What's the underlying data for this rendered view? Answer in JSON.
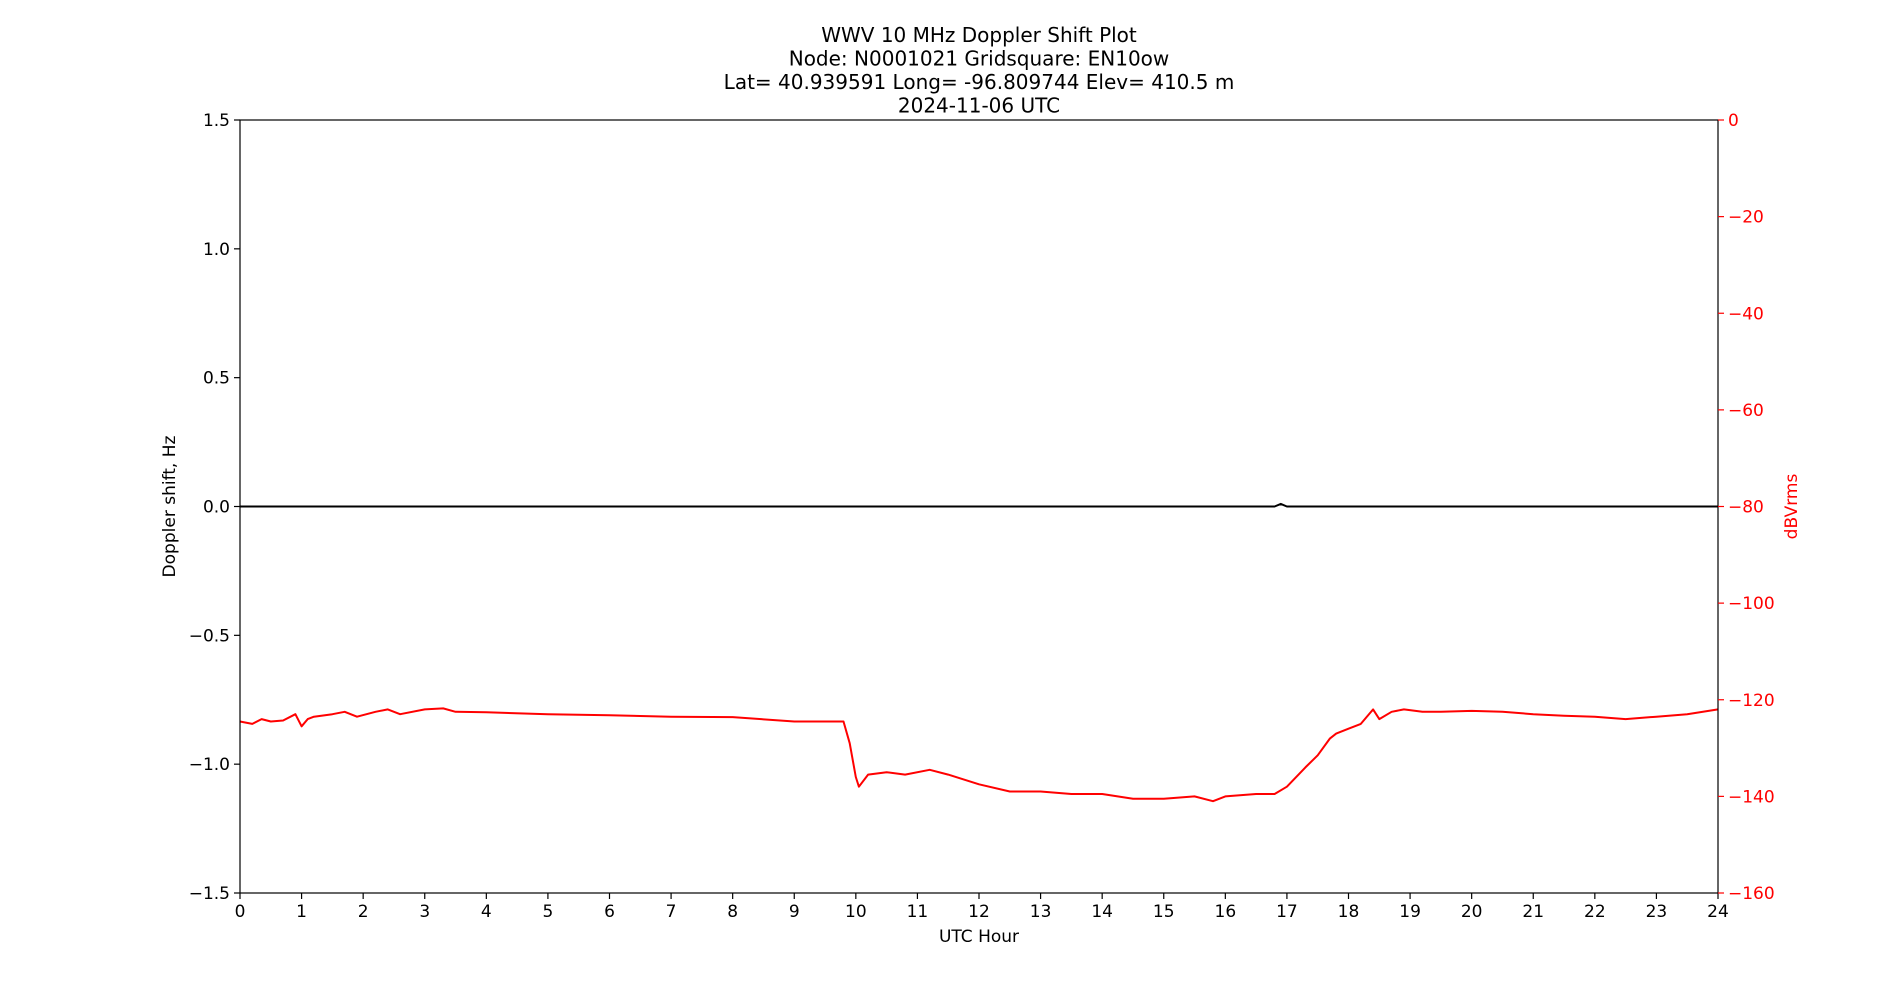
{
  "colors": {
    "doppler": "#000000",
    "power": "#ff0000",
    "axis": "#000000",
    "right_axis": "#ff0000"
  },
  "chart_data": {
    "type": "line",
    "title_lines": [
      "WWV 10 MHz Doppler Shift Plot",
      "Node:  N0001021     Gridsquare:  EN10ow",
      "Lat= 40.939591    Long= -96.809744    Elev= 410.5 m",
      "2024-11-06  UTC"
    ],
    "xlabel": "UTC Hour",
    "ylabel": "Doppler shift, Hz",
    "y2label": "dBVrms",
    "xlim": [
      0,
      24
    ],
    "ylim": [
      -1.5,
      1.5
    ],
    "y2lim": [
      -160,
      0
    ],
    "x_ticks": [
      0,
      1,
      2,
      3,
      4,
      5,
      6,
      7,
      8,
      9,
      10,
      11,
      12,
      13,
      14,
      15,
      16,
      17,
      18,
      19,
      20,
      21,
      22,
      23,
      24
    ],
    "y_ticks": [
      1.5,
      1.0,
      0.5,
      0.0,
      -0.5,
      -1.0,
      -1.5
    ],
    "y_tick_labels": [
      "1.5",
      "1.0",
      "0.5",
      "0.0",
      "−0.5",
      "−1.0",
      "−1.5"
    ],
    "y2_ticks": [
      0,
      -20,
      -40,
      -60,
      -80,
      -100,
      -120,
      -140,
      -160
    ],
    "y2_tick_labels": [
      "0",
      "−20",
      "−40",
      "−60",
      "−80",
      "−100",
      "−120",
      "−140",
      "−160"
    ],
    "grid": false,
    "series": [
      {
        "axis": "left",
        "x": [
          0,
          2,
          4,
          6,
          8,
          10,
          12,
          14,
          16,
          16.8,
          16.9,
          17.0,
          18,
          20,
          22,
          24
        ],
        "y": [
          0.0,
          0.0,
          0.0,
          0.0,
          0.0,
          0.0,
          0.0,
          0.0,
          0.0,
          0.0,
          0.01,
          0.0,
          0.0,
          0.0,
          0.0,
          0.0
        ]
      },
      {
        "axis": "right",
        "x": [
          0,
          0.2,
          0.35,
          0.5,
          0.7,
          0.9,
          1.0,
          1.1,
          1.2,
          1.5,
          1.7,
          1.9,
          2.2,
          2.4,
          2.6,
          3.0,
          3.3,
          3.5,
          4.0,
          5.0,
          6.0,
          7.0,
          8.0,
          9.0,
          9.5,
          9.8,
          9.9,
          10.0,
          10.05,
          10.2,
          10.5,
          10.8,
          11.2,
          11.5,
          12.0,
          12.5,
          13.0,
          13.5,
          14.0,
          14.5,
          15.0,
          15.5,
          15.8,
          16.0,
          16.5,
          16.8,
          17.0,
          17.3,
          17.5,
          17.7,
          17.8,
          18.0,
          18.2,
          18.4,
          18.5,
          18.7,
          18.9,
          19.2,
          19.5,
          20.0,
          20.5,
          21.0,
          21.5,
          22.0,
          22.5,
          23.0,
          23.5,
          24.0
        ],
        "y": [
          -124.5,
          -125.0,
          -124.0,
          -124.5,
          -124.3,
          -123.0,
          -125.5,
          -124.0,
          -123.5,
          -123.0,
          -122.5,
          -123.5,
          -122.5,
          -122.0,
          -123.0,
          -122.0,
          -121.8,
          -122.5,
          -122.6,
          -123.0,
          -123.2,
          -123.5,
          -123.6,
          -124.5,
          -124.5,
          -124.5,
          -129.0,
          -136.0,
          -138.0,
          -135.5,
          -135.0,
          -135.5,
          -134.5,
          -135.5,
          -137.5,
          -139.0,
          -139.0,
          -139.5,
          -139.5,
          -140.5,
          -140.5,
          -140.0,
          -141.0,
          -140.0,
          -139.5,
          -139.5,
          -138.0,
          -134.0,
          -131.5,
          -128.0,
          -127.0,
          -126.0,
          -125.0,
          -122.0,
          -124.0,
          -122.5,
          -122.0,
          -122.5,
          -122.5,
          -122.3,
          -122.5,
          -123.0,
          -123.3,
          -123.5,
          -124.0,
          -123.5,
          -123.0,
          -122.0
        ]
      }
    ]
  }
}
